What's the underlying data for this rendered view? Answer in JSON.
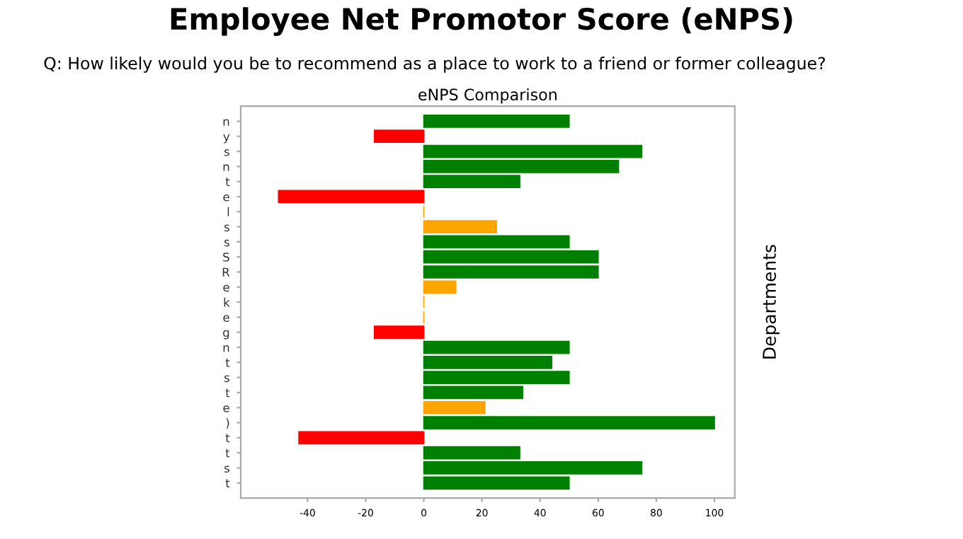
{
  "chart_data": {
    "type": "bar",
    "orientation": "horizontal",
    "title": "eNPS Comparison",
    "annotations": [
      "Employee Net Promotor Score (eNPS)",
      "Q: How likely would you be to recommend as a place to work to a friend or former colleague?"
    ],
    "ylabel": "Departments",
    "categories": [
      "n",
      "y",
      "s",
      "n",
      "t",
      "e",
      "l",
      "s",
      "s",
      "S",
      "R",
      "e",
      "k",
      "e",
      "g",
      "n",
      "t",
      "s",
      "t",
      "e",
      ")",
      "t",
      "t",
      "s",
      "t"
    ],
    "values": [
      50,
      -17,
      75,
      67,
      33,
      -50,
      0,
      25,
      50,
      60,
      60,
      11,
      0,
      0,
      -17,
      50,
      44,
      50,
      34,
      21,
      100,
      -43,
      33,
      75,
      50
    ],
    "colors": [
      "#008000",
      "#ff0000",
      "#008000",
      "#008000",
      "#008000",
      "#ff0000",
      "#ffa500",
      "#ffa500",
      "#008000",
      "#008000",
      "#008000",
      "#ffa500",
      "#ffa500",
      "#ffa500",
      "#ff0000",
      "#008000",
      "#008000",
      "#008000",
      "#008000",
      "#ffa500",
      "#008000",
      "#ff0000",
      "#008000",
      "#008000",
      "#008000"
    ],
    "xlim": [
      -63,
      107
    ],
    "xticks": [
      -40,
      -20,
      0,
      20,
      40,
      60,
      80,
      100
    ],
    "grid": false,
    "legend": false
  }
}
